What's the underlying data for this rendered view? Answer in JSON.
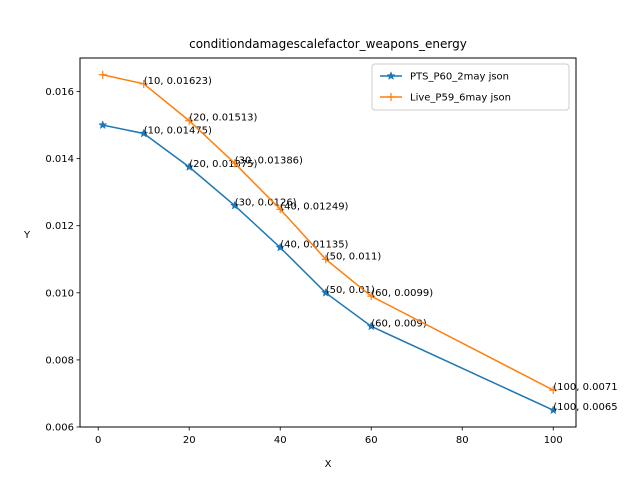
{
  "chart_data": {
    "type": "line",
    "title": "conditiondamagescalefactor_weapons_energy",
    "xlabel": "X",
    "ylabel": "Y",
    "xlim": [
      -4,
      105
    ],
    "ylim": [
      0.006,
      0.017
    ],
    "x_ticks": [
      0,
      20,
      40,
      60,
      80,
      100
    ],
    "y_ticks": [
      0.006,
      0.008,
      0.01,
      0.012,
      0.014,
      0.016
    ],
    "x_tick_labels": [
      "0",
      "20",
      "40",
      "60",
      "80",
      "100"
    ],
    "y_tick_labels": [
      "0.006",
      "0.008",
      "0.010",
      "0.012",
      "0.014",
      "0.016"
    ],
    "grid": false,
    "legend_position": "top-right",
    "series": [
      {
        "name": "PTS_P60_2may json",
        "color": "#1f77b4",
        "marker": "star",
        "x": [
          1,
          10,
          20,
          30,
          40,
          50,
          60,
          100
        ],
        "y": [
          0.015,
          0.01475,
          0.01375,
          0.0126,
          0.01135,
          0.01,
          0.009,
          0.0065
        ],
        "labels": [
          "",
          "(10, 0.01475)",
          "(20, 0.01375)",
          "(30, 0.0126)",
          "(40, 0.01135)",
          "(50, 0.01)",
          "(60, 0.009)",
          "(100, 0.0065"
        ]
      },
      {
        "name": "Live_P59_6may json",
        "color": "#ff7f0e",
        "marker": "plus",
        "x": [
          1,
          10,
          20,
          30,
          40,
          50,
          60,
          100
        ],
        "y": [
          0.0165,
          0.01623,
          0.01513,
          0.01386,
          0.01249,
          0.011,
          0.0099,
          0.0071
        ],
        "labels": [
          "",
          "(10, 0.01623)",
          "(20, 0.01513)",
          "(30, 0.01386)",
          "(40, 0.01249)",
          "(50, 0.011)",
          "(60, 0.0099)",
          "(100, 0.0071"
        ]
      }
    ]
  }
}
